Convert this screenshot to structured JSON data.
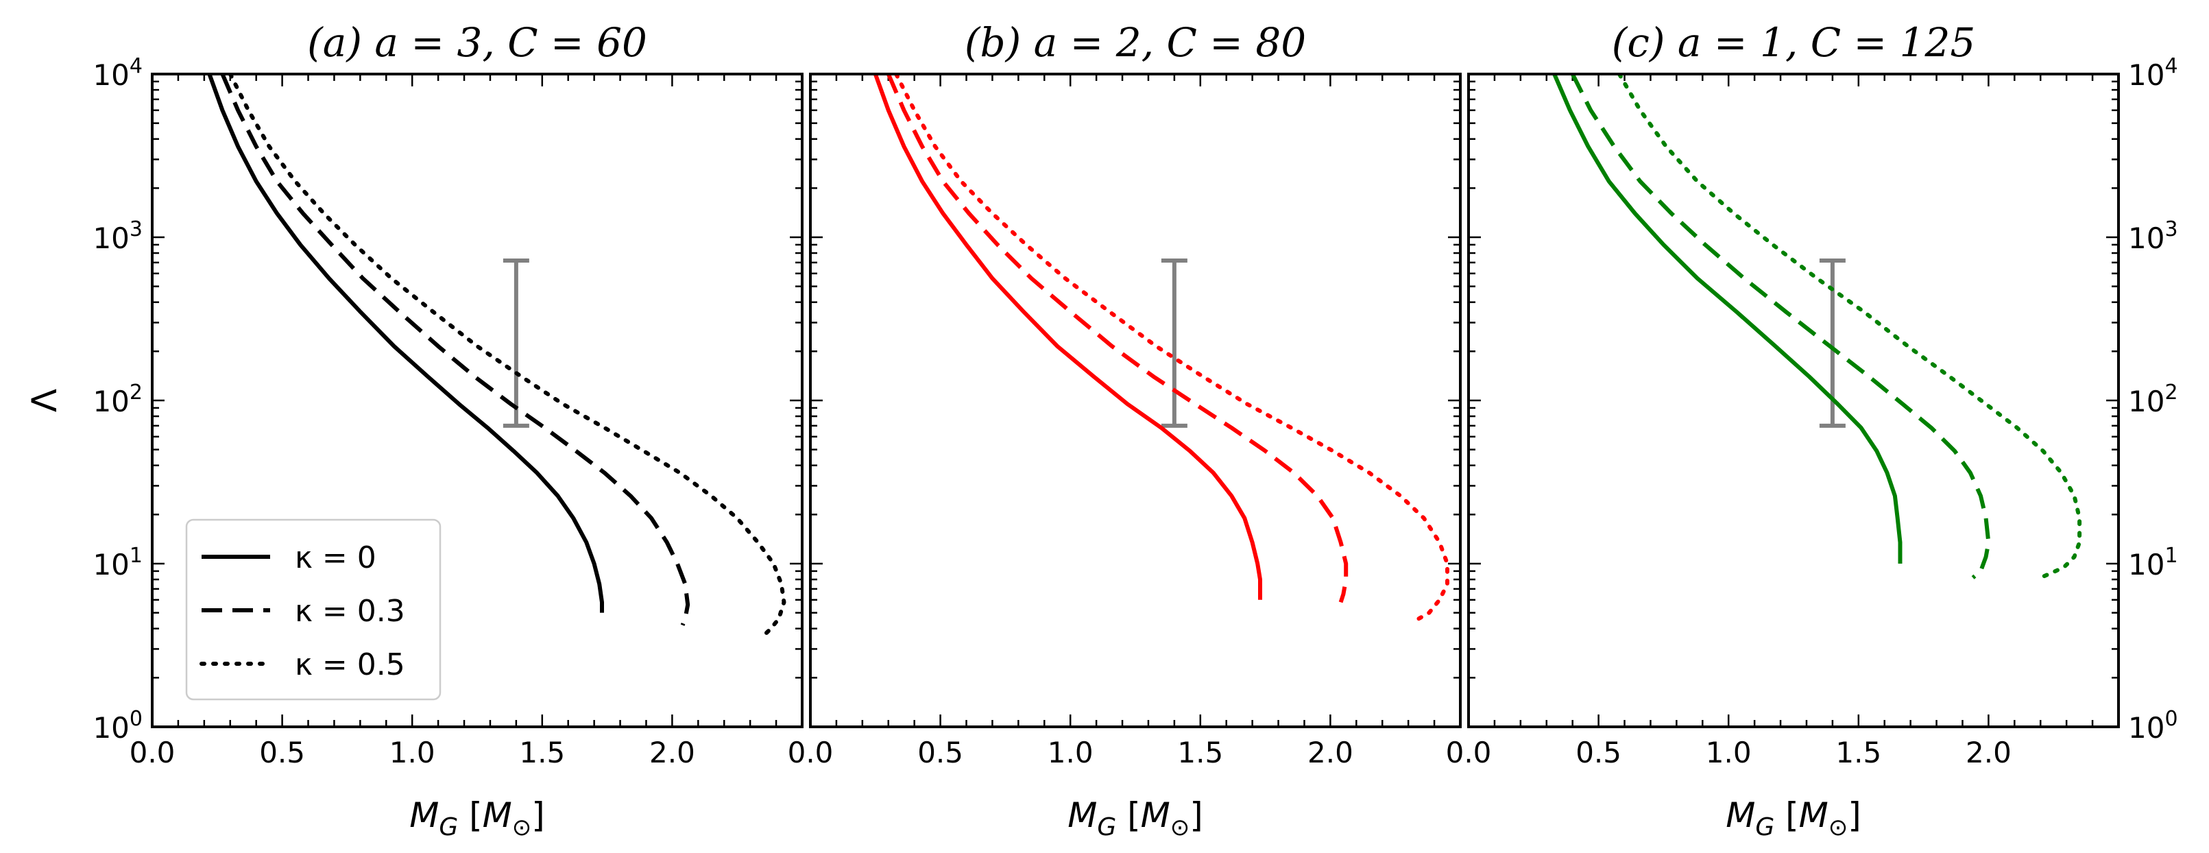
{
  "chart_data": [
    {
      "type": "line",
      "title": "(a) a = 3, C = 60",
      "color": "#000000",
      "xlabel": "M_G [M_⊙]",
      "ylabel": "Λ",
      "xlim": [
        0,
        2.5
      ],
      "ylim": [
        1,
        10000
      ],
      "yscale": "log",
      "x_ticks": [
        "0.0",
        "0.5",
        "1.0",
        "1.5",
        "2.0"
      ],
      "errorbar": {
        "x": 1.4,
        "y_low": 70,
        "y_high": 720,
        "color": "#808080"
      },
      "series": [
        {
          "name": "κ = 0",
          "style": "solid",
          "points": [
            [
              0.22,
              10000
            ],
            [
              0.27,
              6000
            ],
            [
              0.33,
              3600
            ],
            [
              0.4,
              2200
            ],
            [
              0.48,
              1400
            ],
            [
              0.57,
              900
            ],
            [
              0.68,
              560
            ],
            [
              0.8,
              350
            ],
            [
              0.93,
              215
            ],
            [
              1.06,
              140
            ],
            [
              1.18,
              95
            ],
            [
              1.29,
              68
            ],
            [
              1.39,
              49
            ],
            [
              1.48,
              36
            ],
            [
              1.56,
              26
            ],
            [
              1.62,
              19
            ],
            [
              1.67,
              13.5
            ],
            [
              1.7,
              10
            ],
            [
              1.72,
              7.5
            ],
            [
              1.73,
              5.8
            ],
            [
              1.73,
              5.0
            ]
          ]
        },
        {
          "name": "κ = 0.3",
          "style": "dashed",
          "points": [
            [
              0.27,
              10000
            ],
            [
              0.33,
              6000
            ],
            [
              0.4,
              3600
            ],
            [
              0.48,
              2200
            ],
            [
              0.58,
              1400
            ],
            [
              0.69,
              900
            ],
            [
              0.81,
              560
            ],
            [
              0.95,
              350
            ],
            [
              1.1,
              215
            ],
            [
              1.24,
              140
            ],
            [
              1.38,
              95
            ],
            [
              1.51,
              68
            ],
            [
              1.63,
              49
            ],
            [
              1.74,
              36
            ],
            [
              1.84,
              26
            ],
            [
              1.92,
              19
            ],
            [
              1.98,
              13.5
            ],
            [
              2.02,
              10
            ],
            [
              2.05,
              7.5
            ],
            [
              2.06,
              5.6
            ],
            [
              2.05,
              4.6
            ],
            [
              2.04,
              4.2
            ]
          ]
        },
        {
          "name": "κ = 0.5",
          "style": "dotted",
          "points": [
            [
              0.3,
              10000
            ],
            [
              0.37,
              6000
            ],
            [
              0.45,
              3600
            ],
            [
              0.55,
              2200
            ],
            [
              0.66,
              1400
            ],
            [
              0.78,
              900
            ],
            [
              0.92,
              560
            ],
            [
              1.08,
              350
            ],
            [
              1.25,
              215
            ],
            [
              1.42,
              140
            ],
            [
              1.58,
              95
            ],
            [
              1.74,
              68
            ],
            [
              1.89,
              49
            ],
            [
              2.03,
              36
            ],
            [
              2.15,
              26
            ],
            [
              2.25,
              19
            ],
            [
              2.33,
              13.5
            ],
            [
              2.39,
              10
            ],
            [
              2.42,
              7.5
            ],
            [
              2.43,
              5.8
            ],
            [
              2.41,
              4.6
            ],
            [
              2.38,
              4.0
            ],
            [
              2.35,
              3.6
            ]
          ]
        }
      ]
    },
    {
      "type": "line",
      "title": "(b) a = 2, C = 80",
      "color": "#ff0000",
      "xlabel": "M_G [M_⊙]",
      "ylabel": "",
      "xlim": [
        0,
        2.5
      ],
      "ylim": [
        1,
        10000
      ],
      "yscale": "log",
      "x_ticks": [
        "0.0",
        "0.5",
        "1.0",
        "1.5",
        "2.0"
      ],
      "errorbar": {
        "x": 1.4,
        "y_low": 70,
        "y_high": 720,
        "color": "#808080"
      },
      "series": [
        {
          "name": "κ = 0",
          "style": "solid",
          "points": [
            [
              0.25,
              10000
            ],
            [
              0.3,
              6000
            ],
            [
              0.36,
              3600
            ],
            [
              0.43,
              2200
            ],
            [
              0.51,
              1400
            ],
            [
              0.6,
              900
            ],
            [
              0.7,
              560
            ],
            [
              0.82,
              350
            ],
            [
              0.95,
              215
            ],
            [
              1.09,
              140
            ],
            [
              1.22,
              95
            ],
            [
              1.35,
              68
            ],
            [
              1.46,
              49
            ],
            [
              1.55,
              36
            ],
            [
              1.62,
              26
            ],
            [
              1.67,
              19
            ],
            [
              1.7,
              13.5
            ],
            [
              1.72,
              10
            ],
            [
              1.73,
              8
            ],
            [
              1.73,
              6.5
            ],
            [
              1.73,
              6.0
            ]
          ]
        },
        {
          "name": "κ = 0.3",
          "style": "dashed",
          "points": [
            [
              0.3,
              10000
            ],
            [
              0.36,
              6000
            ],
            [
              0.43,
              3600
            ],
            [
              0.51,
              2200
            ],
            [
              0.61,
              1400
            ],
            [
              0.72,
              900
            ],
            [
              0.85,
              560
            ],
            [
              1.0,
              350
            ],
            [
              1.16,
              215
            ],
            [
              1.32,
              140
            ],
            [
              1.48,
              95
            ],
            [
              1.62,
              68
            ],
            [
              1.75,
              49
            ],
            [
              1.86,
              36
            ],
            [
              1.95,
              26
            ],
            [
              2.01,
              19
            ],
            [
              2.04,
              13.5
            ],
            [
              2.06,
              10
            ],
            [
              2.06,
              8
            ],
            [
              2.05,
              6.5
            ],
            [
              2.04,
              5.8
            ]
          ]
        },
        {
          "name": "κ = 0.5",
          "style": "dotted",
          "points": [
            [
              0.33,
              10000
            ],
            [
              0.4,
              6000
            ],
            [
              0.48,
              3600
            ],
            [
              0.58,
              2200
            ],
            [
              0.7,
              1400
            ],
            [
              0.83,
              900
            ],
            [
              0.98,
              560
            ],
            [
              1.15,
              350
            ],
            [
              1.33,
              215
            ],
            [
              1.51,
              140
            ],
            [
              1.68,
              95
            ],
            [
              1.85,
              68
            ],
            [
              2.01,
              49
            ],
            [
              2.15,
              36
            ],
            [
              2.27,
              26
            ],
            [
              2.36,
              19
            ],
            [
              2.42,
              13.5
            ],
            [
              2.45,
              10
            ],
            [
              2.45,
              7.5
            ],
            [
              2.42,
              6.0
            ],
            [
              2.38,
              5.0
            ],
            [
              2.33,
              4.5
            ]
          ]
        }
      ]
    },
    {
      "type": "line",
      "title": "(c) a = 1, C = 125",
      "color": "#008000",
      "xlabel": "M_G [M_⊙]",
      "ylabel": "",
      "xlim": [
        0,
        2.5
      ],
      "ylim": [
        1,
        10000
      ],
      "yscale": "log",
      "x_ticks": [
        "0.0",
        "0.5",
        "1.0",
        "1.5",
        "2.0"
      ],
      "errorbar": {
        "x": 1.4,
        "y_low": 70,
        "y_high": 720,
        "color": "#808080"
      },
      "series": [
        {
          "name": "κ = 0",
          "style": "solid",
          "points": [
            [
              0.33,
              10000
            ],
            [
              0.39,
              6000
            ],
            [
              0.46,
              3600
            ],
            [
              0.54,
              2200
            ],
            [
              0.64,
              1400
            ],
            [
              0.75,
              900
            ],
            [
              0.88,
              560
            ],
            [
              1.03,
              350
            ],
            [
              1.18,
              215
            ],
            [
              1.31,
              140
            ],
            [
              1.42,
              95
            ],
            [
              1.51,
              68
            ],
            [
              1.57,
              49
            ],
            [
              1.61,
              36
            ],
            [
              1.64,
              26
            ],
            [
              1.65,
              19
            ],
            [
              1.66,
              13.5
            ],
            [
              1.66,
              11
            ],
            [
              1.66,
              10
            ]
          ]
        },
        {
          "name": "κ = 0.3",
          "style": "dashed",
          "points": [
            [
              0.4,
              10000
            ],
            [
              0.47,
              6000
            ],
            [
              0.56,
              3600
            ],
            [
              0.66,
              2200
            ],
            [
              0.78,
              1400
            ],
            [
              0.91,
              900
            ],
            [
              1.06,
              560
            ],
            [
              1.22,
              350
            ],
            [
              1.39,
              215
            ],
            [
              1.54,
              140
            ],
            [
              1.67,
              95
            ],
            [
              1.78,
              68
            ],
            [
              1.87,
              49
            ],
            [
              1.93,
              36
            ],
            [
              1.97,
              26
            ],
            [
              1.99,
              19
            ],
            [
              2.0,
              13.5
            ],
            [
              1.99,
              11
            ],
            [
              1.97,
              9
            ],
            [
              1.94,
              8.2
            ]
          ]
        },
        {
          "name": "κ = 0.5",
          "style": "dotted",
          "points": [
            [
              0.58,
              10000
            ],
            [
              0.66,
              6000
            ],
            [
              0.76,
              3600
            ],
            [
              0.88,
              2200
            ],
            [
              1.02,
              1400
            ],
            [
              1.17,
              900
            ],
            [
              1.34,
              560
            ],
            [
              1.52,
              350
            ],
            [
              1.69,
              215
            ],
            [
              1.85,
              140
            ],
            [
              1.99,
              95
            ],
            [
              2.11,
              68
            ],
            [
              2.21,
              49
            ],
            [
              2.28,
              36
            ],
            [
              2.33,
              26
            ],
            [
              2.35,
              19
            ],
            [
              2.35,
              13.5
            ],
            [
              2.33,
              11
            ],
            [
              2.29,
              9.5
            ],
            [
              2.23,
              8.6
            ],
            [
              2.2,
              8.2
            ]
          ]
        }
      ]
    }
  ],
  "legend": {
    "placement": "lower-left of panel (a)",
    "entries": [
      {
        "label": "κ = 0",
        "style": "solid"
      },
      {
        "label": "κ = 0.3",
        "style": "dashed"
      },
      {
        "label": "κ = 0.5",
        "style": "dotted"
      }
    ]
  },
  "y_tick_labels": [
    {
      "base": "10",
      "exp": "0"
    },
    {
      "base": "10",
      "exp": "1"
    },
    {
      "base": "10",
      "exp": "2"
    },
    {
      "base": "10",
      "exp": "3"
    },
    {
      "base": "10",
      "exp": "4"
    }
  ],
  "xlabel_parts": {
    "m": "M",
    "sub": "G",
    "open": " [",
    "m2": "M",
    "sun": "⊙",
    "close": "]"
  }
}
